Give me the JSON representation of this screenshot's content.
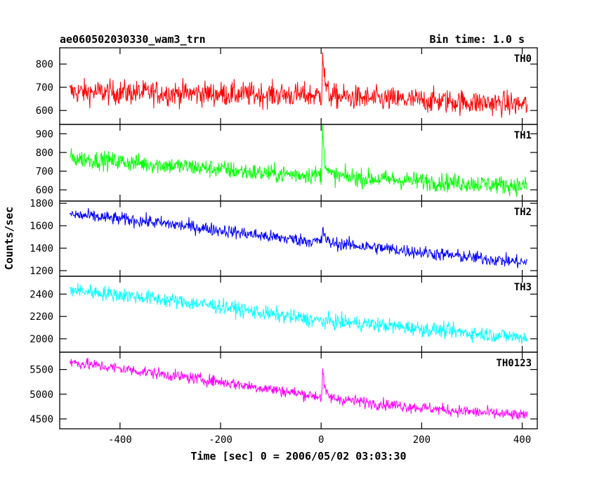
{
  "chart_data": {
    "type": "line",
    "title": "ae060502030330_wam3_trn",
    "subtitle": "Bin time: 1.0 s",
    "xlabel": "Time [sec] 0 = 2006/05/02 03:03:30",
    "ylabel": "Counts/sec",
    "xlim": [
      -520,
      430
    ],
    "x_ticks": [
      -400,
      -200,
      0,
      200,
      400
    ],
    "grid": false,
    "panels": [
      {
        "name": "TH0",
        "color": "#ff0000",
        "ylim": [
          540,
          870
        ],
        "y_ticks": [
          600,
          700,
          800
        ],
        "trend": [
          [
            -500,
            680
          ],
          [
            -300,
            675
          ],
          [
            -100,
            668
          ],
          [
            0,
            665
          ],
          [
            100,
            650
          ],
          [
            250,
            640
          ],
          [
            410,
            625
          ]
        ],
        "noise": 38,
        "peak": {
          "x": 3,
          "y": 870
        }
      },
      {
        "name": "TH1",
        "color": "#00ff00",
        "ylim": [
          540,
          950
        ],
        "y_ticks": [
          600,
          700,
          800,
          900
        ],
        "trend": [
          [
            -500,
            770
          ],
          [
            -350,
            740
          ],
          [
            -200,
            710
          ],
          [
            -100,
            685
          ],
          [
            0,
            680
          ],
          [
            100,
            660
          ],
          [
            250,
            640
          ],
          [
            410,
            620
          ]
        ],
        "noise": 35,
        "peak": {
          "x": 3,
          "y": 960
        }
      },
      {
        "name": "TH2",
        "color": "#0000ff",
        "ylim": [
          1150,
          1820
        ],
        "y_ticks": [
          1200,
          1400,
          1600,
          1800
        ],
        "trend": [
          [
            -500,
            1700
          ],
          [
            -350,
            1640
          ],
          [
            -200,
            1560
          ],
          [
            -100,
            1500
          ],
          [
            0,
            1455
          ],
          [
            100,
            1410
          ],
          [
            250,
            1340
          ],
          [
            410,
            1270
          ]
        ],
        "noise": 42,
        "peak": {
          "x": 3,
          "y": 1600
        }
      },
      {
        "name": "TH3",
        "color": "#00ffff",
        "ylim": [
          1880,
          2560
        ],
        "y_ticks": [
          2000,
          2200,
          2400
        ],
        "trend": [
          [
            -500,
            2440
          ],
          [
            -350,
            2370
          ],
          [
            -200,
            2290
          ],
          [
            -100,
            2220
          ],
          [
            0,
            2160
          ],
          [
            100,
            2130
          ],
          [
            250,
            2070
          ],
          [
            410,
            2010
          ]
        ],
        "noise": 48,
        "peak": null
      },
      {
        "name": "TH0123",
        "color": "#ff00ff",
        "ylim": [
          4300,
          5850
        ],
        "y_ticks": [
          4500,
          5000,
          5500
        ],
        "trend": [
          [
            -500,
            5650
          ],
          [
            -350,
            5450
          ],
          [
            -200,
            5250
          ],
          [
            -100,
            5100
          ],
          [
            0,
            4950
          ],
          [
            100,
            4820
          ],
          [
            250,
            4680
          ],
          [
            410,
            4560
          ]
        ],
        "noise": 85,
        "peak": {
          "x": 3,
          "y": 5500
        }
      }
    ]
  }
}
